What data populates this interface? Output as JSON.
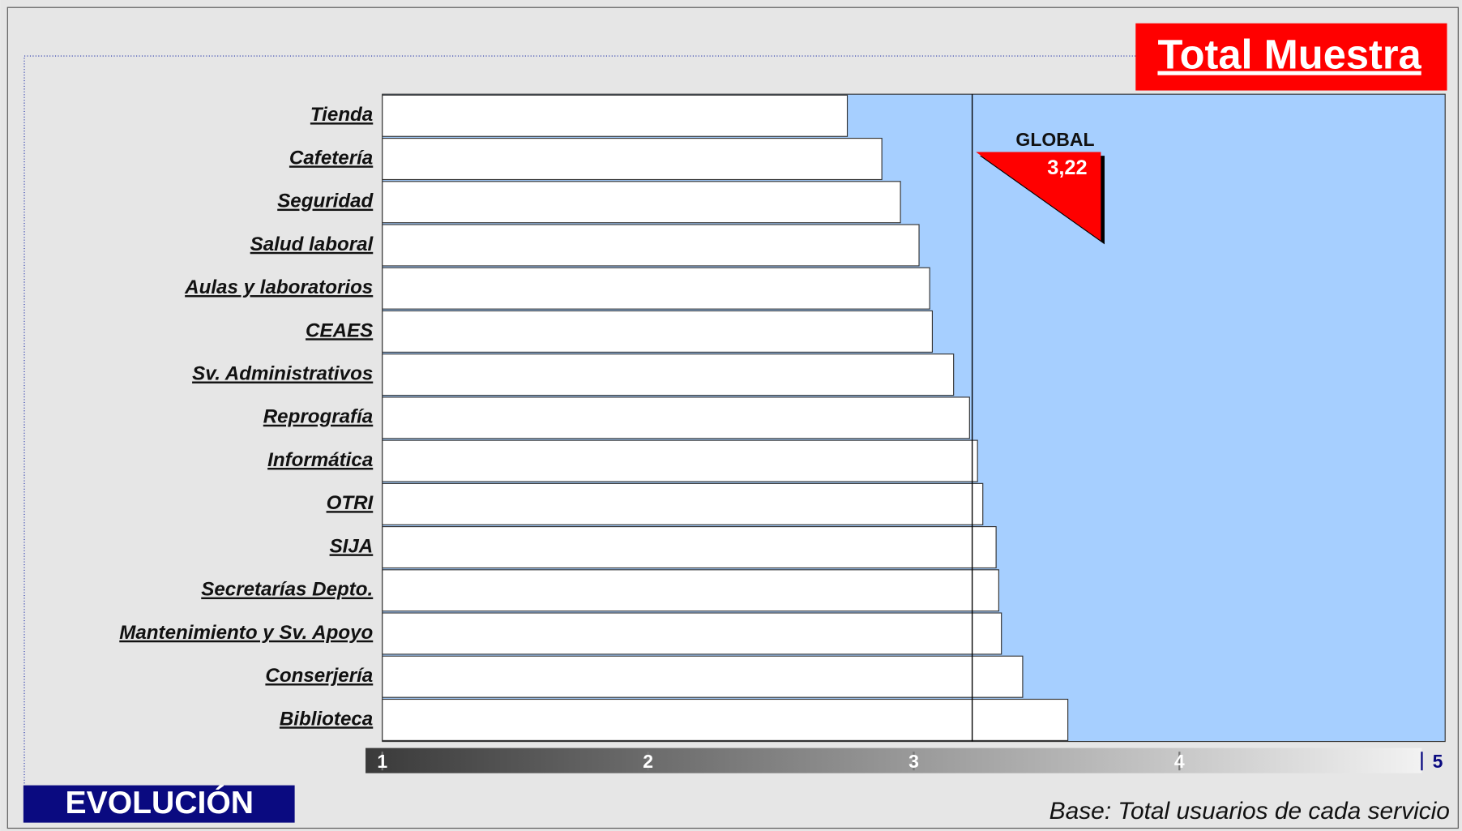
{
  "chart_data": {
    "type": "barh",
    "title": "Total Muestra",
    "categories": [
      "Tienda",
      "Cafetería",
      "Seguridad",
      "Salud laboral",
      "Aulas y laboratorios",
      "CEAES",
      "Sv. Administrativos",
      "Reprografía",
      "Informática",
      "OTRI",
      "SIJA",
      "Secretarías Depto.",
      "Mantenimiento y Sv. Apoyo",
      "Conserjería",
      "Biblioteca"
    ],
    "values": [
      2.75,
      2.88,
      2.95,
      3.02,
      3.06,
      3.07,
      3.15,
      3.21,
      3.24,
      3.26,
      3.31,
      3.32,
      3.33,
      3.41,
      3.58
    ],
    "color": "#ffffff",
    "plot_color": "#a6cfff",
    "xlim": [
      1,
      5
    ],
    "xticks": [
      1,
      2,
      3,
      4,
      5
    ],
    "global": {
      "label": "GLOBAL",
      "value": 3.22,
      "value_label": "3,22",
      "color": "#ff0000"
    },
    "footer_button": "EVOLUCIÓN",
    "note": "Base: Total usuarios de cada servicio"
  }
}
